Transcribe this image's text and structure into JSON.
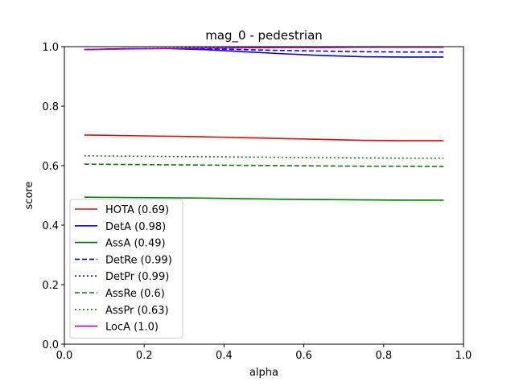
{
  "chart_data": {
    "type": "line",
    "title": "mag_0 - pedestrian",
    "xlabel": "alpha",
    "ylabel": "score",
    "xlim": [
      0.0,
      1.0
    ],
    "ylim": [
      0.0,
      1.0
    ],
    "xticks": [
      "0.0",
      "0.2",
      "0.4",
      "0.6",
      "0.8",
      "1.0"
    ],
    "yticks": [
      "0.0",
      "0.2",
      "0.4",
      "0.6",
      "0.8",
      "1.0"
    ],
    "grid": false,
    "legend_position": "lower-left",
    "x": [
      0.05,
      0.15,
      0.25,
      0.35,
      0.45,
      0.55,
      0.65,
      0.75,
      0.85,
      0.95
    ],
    "series": [
      {
        "name": "HOTA (0.69)",
        "color": "#ff0000",
        "dash": "solid",
        "values": [
          0.703,
          0.701,
          0.699,
          0.697,
          0.694,
          0.691,
          0.688,
          0.685,
          0.684,
          0.684
        ]
      },
      {
        "name": "DetA (0.98)",
        "color": "#0000ff",
        "dash": "solid",
        "values": [
          0.99,
          0.993,
          0.994,
          0.99,
          0.983,
          0.976,
          0.97,
          0.966,
          0.965,
          0.965
        ]
      },
      {
        "name": "AssA (0.49)",
        "color": "#008000",
        "dash": "solid",
        "values": [
          0.494,
          0.493,
          0.492,
          0.491,
          0.489,
          0.487,
          0.486,
          0.485,
          0.484,
          0.484
        ]
      },
      {
        "name": "DetRe (0.99)",
        "color": "#0000ff",
        "dash": "dashed",
        "values": [
          0.99,
          0.993,
          0.994,
          0.993,
          0.99,
          0.987,
          0.985,
          0.983,
          0.982,
          0.982
        ]
      },
      {
        "name": "DetPr (0.99)",
        "color": "#0000ff",
        "dash": "dotted",
        "values": [
          0.99,
          0.993,
          0.995,
          0.997,
          0.998,
          0.998,
          0.998,
          0.998,
          0.998,
          0.998
        ]
      },
      {
        "name": "AssRe (0.6)",
        "color": "#008000",
        "dash": "dashed",
        "values": [
          0.605,
          0.604,
          0.603,
          0.602,
          0.601,
          0.6,
          0.599,
          0.598,
          0.598,
          0.597
        ]
      },
      {
        "name": "AssPr (0.63)",
        "color": "#008000",
        "dash": "dotted",
        "values": [
          0.633,
          0.632,
          0.631,
          0.63,
          0.629,
          0.628,
          0.627,
          0.626,
          0.625,
          0.625
        ]
      },
      {
        "name": "LocA (1.0)",
        "color": "#bf00bf",
        "dash": "solid",
        "values": [
          0.99,
          0.992,
          0.994,
          0.995,
          0.996,
          0.997,
          0.997,
          0.998,
          0.998,
          0.998
        ]
      }
    ]
  }
}
